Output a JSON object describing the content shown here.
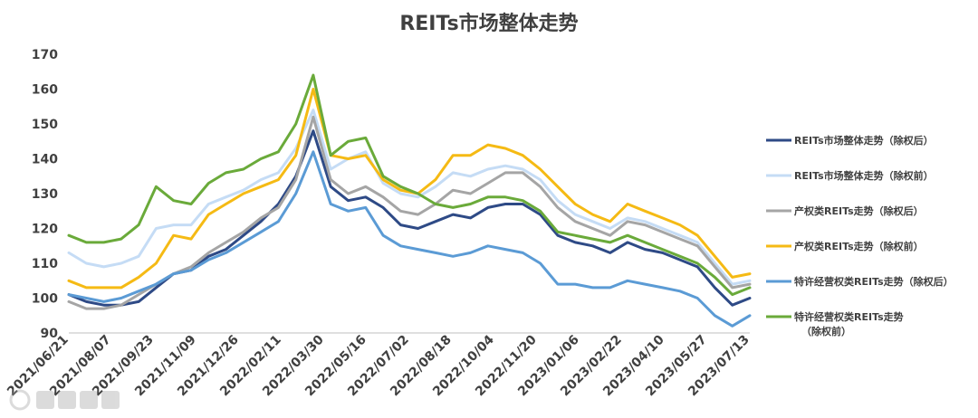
{
  "chart_data": {
    "type": "line",
    "title": "REITs市场整体走势",
    "xlabel": "",
    "ylabel": "",
    "ylim": [
      90,
      170
    ],
    "yticks": [
      90,
      100,
      110,
      120,
      130,
      140,
      150,
      160,
      170
    ],
    "grid": false,
    "legend_position": "right",
    "x_tick_labels": [
      "2021/06/21",
      "2021/08/07",
      "2021/09/23",
      "2021/11/09",
      "2021/12/26",
      "2022/02/11",
      "2022/03/30",
      "2022/05/16",
      "2022/07/02",
      "2022/08/18",
      "2022/10/04",
      "2022/11/20",
      "2023/01/06",
      "2023/02/22",
      "2023/04/10",
      "2023/05/27",
      "2023/07/13"
    ],
    "series": [
      {
        "name": "REITs市场整体走势（除权后）",
        "color": "#2E4A86",
        "width": 3,
        "legend_lines": [
          "REITs市场整体走势（除权后）"
        ],
        "values": [
          101,
          99,
          98,
          98,
          99,
          103,
          107,
          108,
          112,
          114,
          118,
          122,
          127,
          135,
          148,
          132,
          128,
          129,
          126,
          121,
          120,
          122,
          124,
          123,
          126,
          127,
          127,
          124,
          118,
          116,
          115,
          113,
          116,
          114,
          113,
          111,
          109,
          103,
          98,
          100
        ]
      },
      {
        "name": "REITs市场整体走势（除权前）",
        "color": "#C5DCF5",
        "width": 3,
        "legend_lines": [
          "REITs市场整体走势（除权前）"
        ],
        "values": [
          113,
          110,
          109,
          110,
          112,
          120,
          121,
          121,
          127,
          129,
          131,
          134,
          136,
          143,
          154,
          137,
          140,
          142,
          133,
          130,
          129,
          132,
          136,
          135,
          137,
          138,
          137,
          134,
          128,
          124,
          122,
          120,
          123,
          122,
          120,
          118,
          116,
          110,
          104,
          105
        ]
      },
      {
        "name": "产权类REITs走势（除权后）",
        "color": "#A5A5A5",
        "width": 3,
        "legend_lines": [
          "产权类REITs走势（除权后）"
        ],
        "values": [
          99,
          97,
          97,
          98,
          101,
          104,
          107,
          109,
          113,
          116,
          119,
          123,
          126,
          134,
          152,
          134,
          130,
          132,
          129,
          125,
          124,
          127,
          131,
          130,
          133,
          136,
          136,
          132,
          126,
          122,
          120,
          118,
          122,
          121,
          119,
          117,
          115,
          109,
          103,
          104
        ]
      },
      {
        "name": "产权类REITs走势（除权前）",
        "color": "#F5BA14",
        "width": 3,
        "legend_lines": [
          "产权类REITs走势（除权前）"
        ],
        "values": [
          105,
          103,
          103,
          103,
          106,
          110,
          118,
          117,
          124,
          127,
          130,
          132,
          134,
          141,
          160,
          141,
          140,
          141,
          134,
          131,
          130,
          134,
          141,
          141,
          144,
          143,
          141,
          137,
          132,
          127,
          124,
          122,
          127,
          125,
          123,
          121,
          118,
          112,
          106,
          107
        ]
      },
      {
        "name": "特许经营权类REITs走势（除权后）",
        "color": "#5B9BD5",
        "width": 3,
        "legend_lines": [
          "特许经营权类REITs走势（除权后）"
        ],
        "values": [
          101,
          100,
          99,
          100,
          102,
          104,
          107,
          108,
          111,
          113,
          116,
          119,
          122,
          130,
          142,
          127,
          125,
          126,
          118,
          115,
          114,
          113,
          112,
          113,
          115,
          114,
          113,
          110,
          104,
          104,
          103,
          103,
          105,
          104,
          103,
          102,
          100,
          95,
          92,
          95
        ]
      },
      {
        "name": "特许经营权类REITs走势（除权前）",
        "color": "#6AAA3A",
        "width": 3,
        "legend_lines": [
          "特许经营权类REITs走势",
          "（除权前）"
        ],
        "values": [
          118,
          116,
          116,
          117,
          121,
          132,
          128,
          127,
          133,
          136,
          137,
          140,
          142,
          150,
          164,
          141,
          145,
          146,
          135,
          132,
          130,
          127,
          126,
          127,
          129,
          129,
          128,
          125,
          119,
          118,
          117,
          116,
          118,
          116,
          114,
          112,
          110,
          106,
          101,
          103
        ]
      }
    ]
  }
}
